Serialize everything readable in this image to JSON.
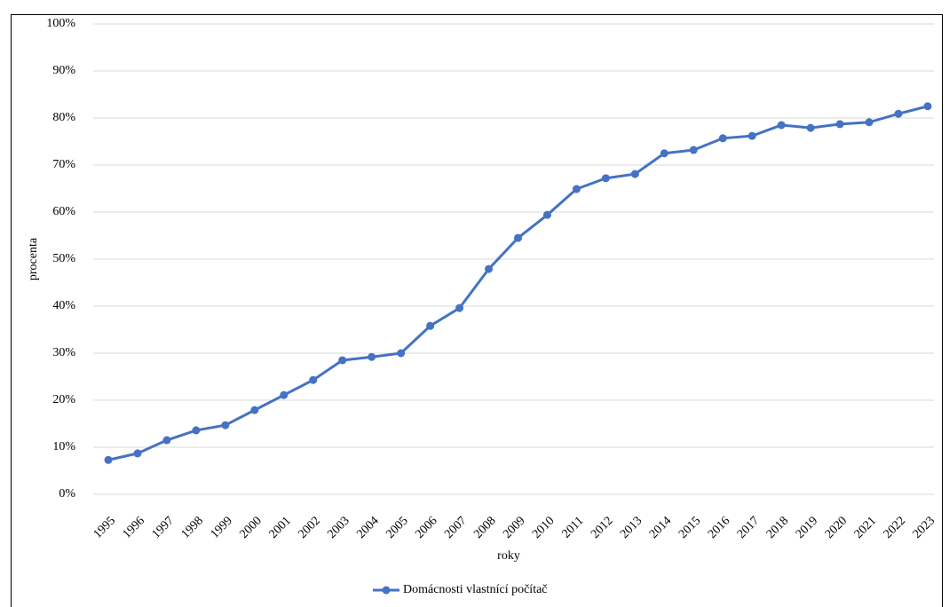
{
  "chart_data": {
    "type": "line",
    "x_label": "roky",
    "y_label": "procenta",
    "categories": [
      "1995",
      "1996",
      "1997",
      "1998",
      "1999",
      "2000",
      "2001",
      "2002",
      "2003",
      "2004",
      "2005",
      "2006",
      "2007",
      "2008",
      "2009",
      "2010",
      "2011",
      "2012",
      "2013",
      "2014",
      "2015",
      "2016",
      "2017",
      "2018",
      "2019",
      "2020",
      "2021",
      "2022",
      "2023"
    ],
    "series": [
      {
        "name": "Domácnosti vlastnící počítač",
        "color": "#4472c4",
        "values": [
          7.3,
          8.7,
          11.5,
          13.6,
          14.7,
          17.9,
          21.1,
          24.3,
          28.5,
          29.2,
          30.0,
          35.8,
          39.6,
          47.9,
          54.5,
          59.4,
          64.9,
          67.2,
          68.1,
          72.5,
          73.2,
          75.7,
          76.2,
          78.5,
          77.9,
          78.7,
          79.1,
          80.9,
          82.5
        ]
      }
    ],
    "ylim": [
      0,
      100
    ],
    "yticks": [
      {
        "value": 0,
        "label": "0%"
      },
      {
        "value": 10,
        "label": "10%"
      },
      {
        "value": 20,
        "label": "20%"
      },
      {
        "value": 30,
        "label": "30%"
      },
      {
        "value": 40,
        "label": "40%"
      },
      {
        "value": 50,
        "label": "50%"
      },
      {
        "value": 60,
        "label": "60%"
      },
      {
        "value": 70,
        "label": "70%"
      },
      {
        "value": 80,
        "label": "80%"
      },
      {
        "value": 90,
        "label": "90%"
      },
      {
        "value": 100,
        "label": "100%"
      }
    ],
    "grid": true,
    "legend": "bottom"
  }
}
